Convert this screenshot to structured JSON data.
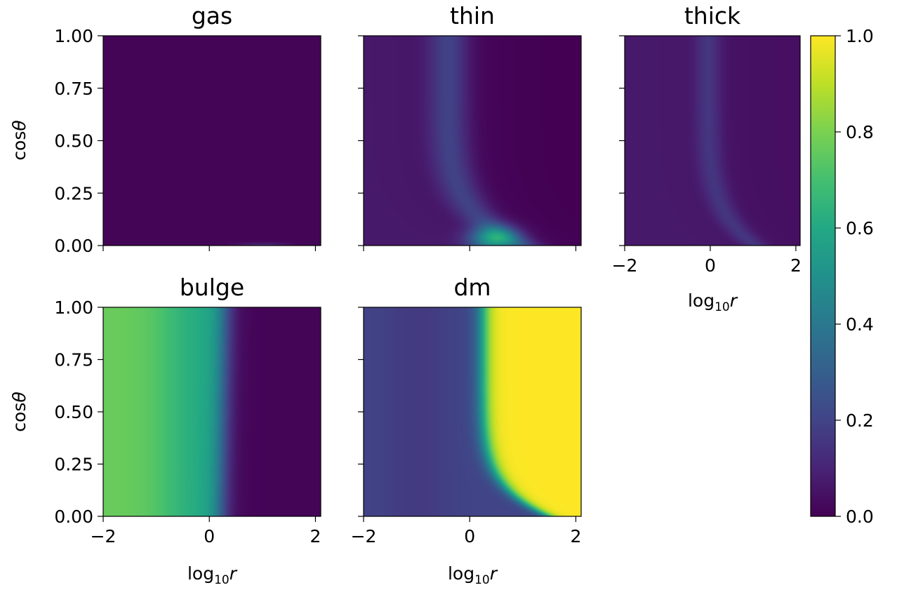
{
  "figure": {
    "x_axis_label_main": "log",
    "x_axis_label_sub": "10",
    "x_axis_label_var": "r",
    "y_axis_label_prefix": "cos",
    "y_axis_label_var": "θ"
  },
  "colorbar": {
    "colormap": "viridis",
    "range": [
      0,
      1
    ],
    "tick_values": [
      0.0,
      0.2,
      0.4,
      0.6,
      0.8,
      1.0
    ],
    "tick_labels": [
      "0.0",
      "0.2",
      "0.4",
      "0.6",
      "0.8",
      "1.0"
    ]
  },
  "chart_data": [
    {
      "type": "heatmap",
      "title": "gas",
      "xlabel": "",
      "ylabel": "cosθ",
      "xlim": [
        -2,
        2.1
      ],
      "ylim": [
        0,
        1
      ],
      "xticks": [
        -2,
        0,
        2
      ],
      "xtick_labels": [],
      "yticks": [
        0,
        0.25,
        0.5,
        0.75,
        1.0
      ],
      "ytick_labels": [
        "0.00",
        "0.25",
        "0.50",
        "0.75",
        "1.00"
      ],
      "value_range": [
        0,
        1
      ],
      "description": "near 0 everywhere; faint band ≈0.1 only at cosθ≈0 for log10r 0.5–1.8"
    },
    {
      "type": "heatmap",
      "title": "thin",
      "xlabel": "",
      "ylabel": "",
      "xlim": [
        -2,
        2.1
      ],
      "ylim": [
        0,
        1
      ],
      "xticks": [
        -2,
        0,
        2
      ],
      "xtick_labels": [],
      "yticks": [
        0,
        0.25,
        0.5,
        0.75,
        1.0
      ],
      "ytick_labels": [],
      "value_range": [
        0,
        1
      ],
      "description": "≈0.2 band near log10r≈-0.4 bending toward larger r at low cosθ, peak ≈0.55 at log10r≈0.5, cosθ≈0.03"
    },
    {
      "type": "heatmap",
      "title": "thick",
      "xlabel": "log10r",
      "ylabel": "",
      "xlim": [
        -2,
        2.1
      ],
      "ylim": [
        0,
        1
      ],
      "xticks": [
        -2,
        0,
        2
      ],
      "xtick_labels": [
        "−2",
        "0",
        "2"
      ],
      "yticks": [
        0,
        0.25,
        0.5,
        0.75,
        1.0
      ],
      "ytick_labels": [],
      "value_range": [
        0,
        1
      ],
      "description": "faint ≈0.1–0.2 band near log10r≈0 bending to ≈1 at low cosθ"
    },
    {
      "type": "heatmap",
      "title": "bulge",
      "xlabel": "log10r",
      "ylabel": "cosθ",
      "xlim": [
        -2,
        2.1
      ],
      "ylim": [
        0,
        1
      ],
      "xticks": [
        -2,
        0,
        2
      ],
      "xtick_labels": [
        "−2",
        "0",
        "2"
      ],
      "yticks": [
        0,
        0.25,
        0.5,
        0.75,
        1.0
      ],
      "ytick_labels": [
        "0.00",
        "0.25",
        "0.50",
        "0.75",
        "1.00"
      ],
      "value_range": [
        0,
        1
      ],
      "description": "≈0.75 for log10r<-0.8, falls to ≈0.6 near -0.2, to 0 beyond ≈0.3"
    },
    {
      "type": "heatmap",
      "title": "dm",
      "xlabel": "log10r",
      "ylabel": "",
      "xlim": [
        -2,
        2.1
      ],
      "ylim": [
        0,
        1
      ],
      "xticks": [
        -2,
        0,
        2
      ],
      "xtick_labels": [
        "−2",
        "0",
        "2"
      ],
      "yticks": [
        0,
        0.25,
        0.5,
        0.75,
        1.0
      ],
      "ytick_labels": [],
      "value_range": [
        0,
        1
      ],
      "description": "≈0.2 at small r, rises to 1.0 beyond log10r≈0.3 (transition shifts to larger r toward cosθ=0)"
    }
  ]
}
